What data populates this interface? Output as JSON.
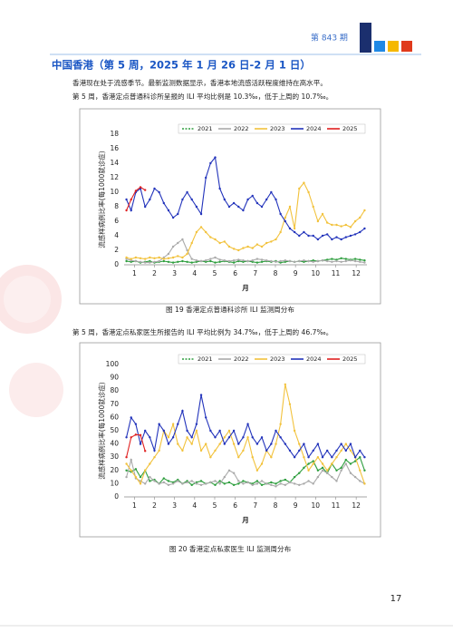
{
  "header": {
    "issue": "第 843 期"
  },
  "title": "中国香港（第 5 周，2025 年 1 月 26 日-2 月 1 日）",
  "paragraphs": [
    "香港现在处于流感季节。最新监测数据显示，香港本地流感活跃程度维持在高水平。",
    "第 5 周，香港定点普通科诊所呈报的 ILI 平均比例是 10.3‰，低于上周的 10.7‰。",
    "第 5 周，香港定点私家医生所报告的 ILI 平均比例为 34.7‰，低于上周的 46.7‰。"
  ],
  "chart_data": [
    {
      "type": "line",
      "caption": "图 19 香港定点普通科诊所 ILI 监测周分布",
      "y_label": "流感样病例比率(每1000就诊症)",
      "x_label": "月",
      "legend": "top",
      "grid": false,
      "x": [
        1,
        2,
        3,
        4,
        5,
        6,
        7,
        8,
        9,
        10,
        11,
        12,
        13,
        14,
        15,
        16,
        17,
        18,
        19,
        20,
        21,
        22,
        23,
        24,
        25,
        26,
        27,
        28,
        29,
        30,
        31,
        32,
        33,
        34,
        35,
        36,
        37,
        38,
        39,
        40,
        41,
        42,
        43,
        44,
        45,
        46,
        47,
        48,
        49,
        50,
        51,
        52
      ],
      "xlim": [
        0.5,
        52.5
      ],
      "xticks": [
        {
          "value": 2.7,
          "label": "1"
        },
        {
          "value": 7.0,
          "label": "2"
        },
        {
          "value": 11.3,
          "label": "3"
        },
        {
          "value": 15.6,
          "label": "4"
        },
        {
          "value": 19.9,
          "label": "5"
        },
        {
          "value": 24.3,
          "label": "6"
        },
        {
          "value": 28.6,
          "label": "7"
        },
        {
          "value": 32.9,
          "label": "8"
        },
        {
          "value": 37.2,
          "label": "9"
        },
        {
          "value": 41.5,
          "label": "10"
        },
        {
          "value": 45.8,
          "label": "11"
        },
        {
          "value": 50.2,
          "label": "12"
        }
      ],
      "ylim": [
        0,
        18
      ],
      "yticks": [
        0,
        2,
        4,
        6,
        8,
        10,
        12,
        14,
        16,
        18
      ],
      "series": [
        {
          "name": "2021",
          "color": "#2e9e3e",
          "values": [
            0.5,
            0.4,
            0.5,
            0.3,
            0.4,
            0.5,
            0.3,
            0.4,
            0.5,
            0.4,
            0.3,
            0.4,
            0.5,
            0.4,
            0.3,
            0.4,
            0.5,
            0.4,
            0.5,
            0.3,
            0.4,
            0.5,
            0.4,
            0.3,
            0.5,
            0.4,
            0.5,
            0.4,
            0.3,
            0.4,
            0.5,
            0.4,
            0.5,
            0.3,
            0.4,
            0.5,
            0.4,
            0.5,
            0.4,
            0.5,
            0.6,
            0.5,
            0.6,
            0.7,
            0.8,
            0.7,
            0.9,
            0.8,
            0.7,
            0.8,
            0.7,
            0.6
          ]
        },
        {
          "name": "2022",
          "color": "#aaaaaa",
          "values": [
            0.8,
            0.6,
            0.5,
            0.4,
            0.3,
            0.3,
            0.4,
            0.5,
            1.0,
            1.5,
            2.5,
            3.0,
            3.5,
            2.0,
            0.8,
            0.6,
            0.5,
            0.6,
            0.8,
            1.0,
            0.7,
            0.6,
            0.5,
            0.6,
            0.7,
            0.6,
            0.5,
            0.6,
            0.8,
            0.7,
            0.6,
            0.5,
            0.4,
            0.5,
            0.6,
            0.5,
            0.4,
            0.5,
            0.6,
            0.5,
            0.4,
            0.5,
            0.6,
            0.5,
            0.4,
            0.5,
            0.4,
            0.5,
            0.6,
            0.5,
            0.4,
            0.3
          ]
        },
        {
          "name": "2023",
          "color": "#f2c23c",
          "values": [
            1.0,
            0.8,
            1.0,
            0.9,
            0.8,
            1.0,
            0.9,
            1.0,
            0.8,
            0.9,
            1.0,
            1.2,
            1.0,
            1.5,
            3.0,
            4.5,
            5.2,
            4.5,
            3.8,
            3.5,
            3.0,
            3.2,
            2.5,
            2.2,
            2.0,
            2.3,
            2.5,
            2.3,
            2.8,
            2.5,
            3.0,
            3.2,
            3.5,
            4.5,
            6.5,
            8.0,
            5.0,
            10.5,
            11.3,
            10.0,
            8.0,
            6.0,
            7.0,
            5.8,
            5.5,
            5.5,
            5.3,
            5.5,
            5.2,
            6.0,
            6.5,
            7.5
          ]
        },
        {
          "name": "2024",
          "color": "#2233bb",
          "values": [
            9.0,
            7.5,
            10.0,
            10.5,
            8.0,
            9.0,
            10.5,
            10.0,
            8.5,
            7.5,
            6.5,
            7.0,
            9.0,
            10.0,
            9.0,
            8.0,
            7.0,
            12.0,
            14.0,
            14.8,
            10.5,
            9.0,
            8.0,
            8.5,
            8.0,
            7.5,
            9.0,
            9.5,
            8.5,
            8.0,
            9.0,
            10.0,
            9.0,
            7.0,
            6.0,
            5.0,
            4.5,
            4.0,
            4.5,
            4.0,
            4.0,
            3.5,
            4.0,
            4.2,
            3.5,
            3.8,
            3.5,
            3.8,
            4.0,
            4.2,
            4.5,
            5.0
          ]
        },
        {
          "name": "2025",
          "color": "#e02020",
          "values": [
            7.5,
            9.0,
            10.2,
            10.7,
            10.3,
            null,
            null,
            null,
            null,
            null,
            null,
            null,
            null,
            null,
            null,
            null,
            null,
            null,
            null,
            null,
            null,
            null,
            null,
            null,
            null,
            null,
            null,
            null,
            null,
            null,
            null,
            null,
            null,
            null,
            null,
            null,
            null,
            null,
            null,
            null,
            null,
            null,
            null,
            null,
            null,
            null,
            null,
            null,
            null,
            null,
            null,
            null
          ]
        }
      ]
    },
    {
      "type": "line",
      "caption": "图 20 香港定点私家医生 ILI 监测周分布",
      "y_label": "流感样病例比率(每1000就诊症)",
      "x_label": "月",
      "legend": "top",
      "grid": false,
      "x": [
        1,
        2,
        3,
        4,
        5,
        6,
        7,
        8,
        9,
        10,
        11,
        12,
        13,
        14,
        15,
        16,
        17,
        18,
        19,
        20,
        21,
        22,
        23,
        24,
        25,
        26,
        27,
        28,
        29,
        30,
        31,
        32,
        33,
        34,
        35,
        36,
        37,
        38,
        39,
        40,
        41,
        42,
        43,
        44,
        45,
        46,
        47,
        48,
        49,
        50,
        51,
        52
      ],
      "xlim": [
        0.5,
        52.5
      ],
      "xticks": [
        {
          "value": 2.7,
          "label": "1"
        },
        {
          "value": 7.0,
          "label": "2"
        },
        {
          "value": 11.3,
          "label": "3"
        },
        {
          "value": 15.6,
          "label": "4"
        },
        {
          "value": 19.9,
          "label": "5"
        },
        {
          "value": 24.3,
          "label": "6"
        },
        {
          "value": 28.6,
          "label": "7"
        },
        {
          "value": 32.9,
          "label": "8"
        },
        {
          "value": 37.2,
          "label": "9"
        },
        {
          "value": 41.5,
          "label": "10"
        },
        {
          "value": 45.8,
          "label": "11"
        },
        {
          "value": 50.2,
          "label": "12"
        }
      ],
      "ylim": [
        0,
        100
      ],
      "yticks": [
        0,
        10,
        20,
        30,
        40,
        50,
        60,
        70,
        80,
        90,
        100
      ],
      "series": [
        {
          "name": "2021",
          "color": "#2e9e3e",
          "values": [
            20,
            19,
            21,
            15,
            20,
            12,
            13,
            10,
            14,
            12,
            11,
            13,
            10,
            12,
            9,
            11,
            12,
            10,
            11,
            9,
            12,
            10,
            11,
            9,
            10,
            12,
            11,
            10,
            12,
            9,
            10,
            11,
            10,
            12,
            13,
            11,
            15,
            18,
            22,
            25,
            27,
            20,
            22,
            18,
            25,
            20,
            22,
            28,
            25,
            27,
            30,
            20
          ]
        },
        {
          "name": "2022",
          "color": "#aaaaaa",
          "values": [
            15,
            28,
            14,
            12,
            10,
            15,
            12,
            10,
            11,
            9,
            10,
            12,
            10,
            11,
            12,
            10,
            9,
            10,
            11,
            12,
            10,
            15,
            20,
            18,
            12,
            10,
            11,
            9,
            10,
            12,
            10,
            9,
            8,
            10,
            9,
            11,
            10,
            9,
            10,
            12,
            10,
            15,
            20,
            18,
            15,
            12,
            20,
            25,
            18,
            15,
            12,
            10
          ]
        },
        {
          "name": "2023",
          "color": "#f2c23c",
          "values": [
            25,
            20,
            15,
            10,
            20,
            25,
            30,
            35,
            50,
            45,
            55,
            40,
            35,
            45,
            40,
            50,
            35,
            40,
            30,
            35,
            40,
            45,
            50,
            40,
            30,
            35,
            45,
            30,
            20,
            25,
            35,
            30,
            40,
            55,
            85,
            70,
            50,
            40,
            30,
            20,
            25,
            30,
            25,
            20,
            25,
            30,
            35,
            40,
            35,
            30,
            20,
            10
          ]
        },
        {
          "name": "2024",
          "color": "#2233bb",
          "values": [
            45,
            60,
            55,
            40,
            50,
            45,
            35,
            55,
            50,
            40,
            45,
            55,
            65,
            50,
            45,
            55,
            77,
            60,
            50,
            45,
            50,
            40,
            45,
            50,
            40,
            45,
            55,
            45,
            40,
            45,
            35,
            40,
            50,
            45,
            40,
            35,
            30,
            35,
            40,
            30,
            35,
            40,
            30,
            35,
            30,
            35,
            40,
            35,
            40,
            30,
            35,
            30
          ]
        },
        {
          "name": "2025",
          "color": "#e02020",
          "values": [
            30,
            45,
            47,
            46.7,
            34.7,
            null,
            null,
            null,
            null,
            null,
            null,
            null,
            null,
            null,
            null,
            null,
            null,
            null,
            null,
            null,
            null,
            null,
            null,
            null,
            null,
            null,
            null,
            null,
            null,
            null,
            null,
            null,
            null,
            null,
            null,
            null,
            null,
            null,
            null,
            null,
            null,
            null,
            null,
            null,
            null,
            null,
            null,
            null,
            null,
            null,
            null,
            null
          ]
        }
      ]
    }
  ],
  "page_number": "17"
}
